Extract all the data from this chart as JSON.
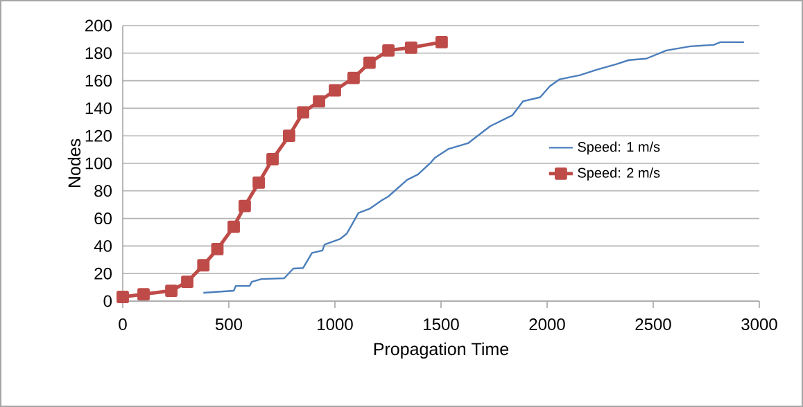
{
  "chart_data": {
    "type": "line",
    "xlabel": "Propagation Time",
    "ylabel": "Nodes",
    "xlim": [
      0,
      3000
    ],
    "ylim": [
      0,
      200
    ],
    "xticks": [
      0,
      500,
      1000,
      1500,
      2000,
      2500,
      3000
    ],
    "yticks": [
      0,
      20,
      40,
      60,
      80,
      100,
      120,
      140,
      160,
      180,
      200
    ],
    "grid": "y",
    "legend": "right",
    "series": [
      {
        "name": "Speed: 1 m/s",
        "color": "#4a7ebb",
        "marker": "none",
        "line_style": "solid",
        "x": [
          380,
          523,
          533,
          598,
          608,
          654,
          761,
          804,
          850,
          892,
          941,
          951,
          1023,
          1056,
          1111,
          1163,
          1219,
          1252,
          1340,
          1392,
          1448,
          1471,
          1536,
          1627,
          1732,
          1837,
          1886,
          1967,
          2013,
          2059,
          2154,
          2235,
          2327,
          2386,
          2467,
          2562,
          2676,
          2784,
          2817,
          2928
        ],
        "values": [
          6,
          7.5,
          11,
          11,
          14,
          16,
          16.6,
          23.6,
          24,
          35,
          36.7,
          41,
          45,
          49,
          64,
          67,
          73,
          76,
          88,
          92,
          100,
          104,
          110.5,
          114.6,
          127,
          135,
          145,
          148,
          156,
          161,
          164,
          168,
          172,
          175,
          176,
          182,
          185,
          186,
          188,
          188
        ]
      },
      {
        "name": "Speed: 2 m/s",
        "color": "#be4b48",
        "marker": "square",
        "line_style": "solid",
        "x": [
          0,
          98,
          229,
          304,
          380,
          446,
          523,
          575,
          641,
          706,
          784,
          850,
          925,
          1000,
          1088,
          1163,
          1252,
          1359,
          1503
        ],
        "values": [
          3,
          5,
          7.5,
          14,
          26,
          37.7,
          54,
          69,
          86,
          103,
          120,
          137,
          145,
          153,
          162,
          173,
          182,
          184,
          188
        ]
      }
    ]
  }
}
